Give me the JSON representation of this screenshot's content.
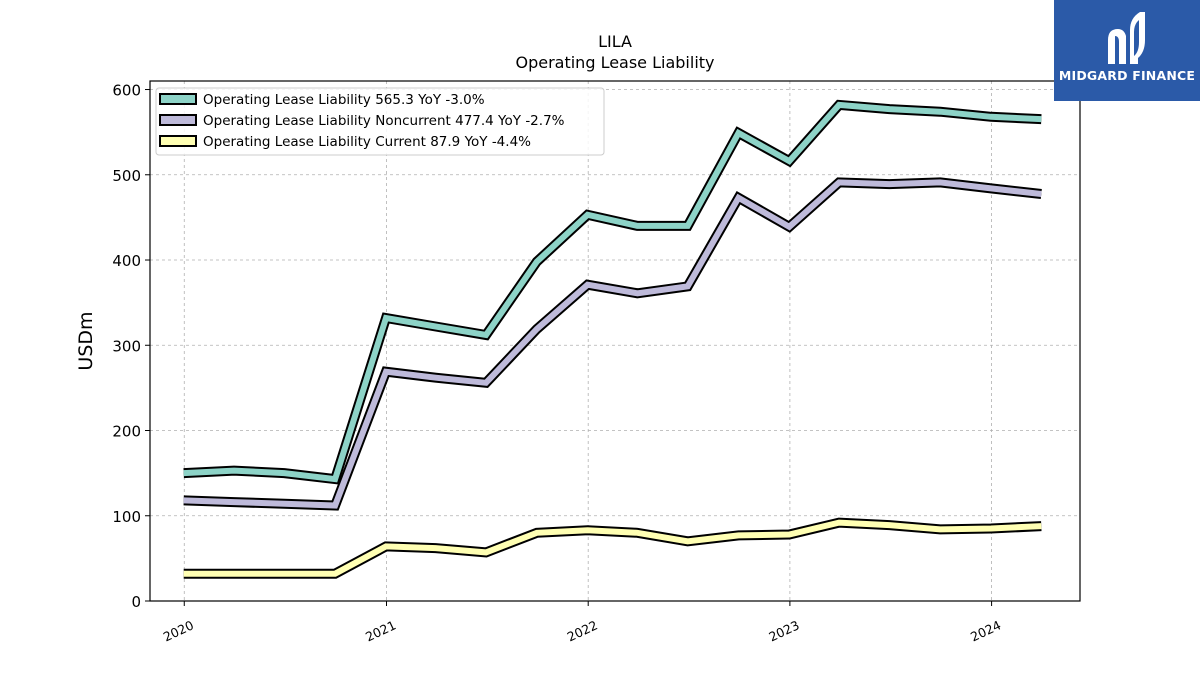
{
  "brand": {
    "name": "MIDGARD FINANCE",
    "icon": "midgard-logo-icon",
    "color": "#2b5aa8"
  },
  "chart_data": {
    "type": "line",
    "title": "LILA",
    "subtitle": "Operating Lease Liability",
    "xlabel": "",
    "ylabel": "USDm",
    "ylim": [
      0,
      610
    ],
    "yticks": [
      0,
      100,
      200,
      300,
      400,
      500,
      600
    ],
    "xtick_labels": [
      "2020",
      "2021",
      "2022",
      "2023",
      "2024"
    ],
    "grid": true,
    "legend_position": "top-left",
    "x": [
      "2019-12-31",
      "2020-03-31",
      "2020-06-30",
      "2020-09-30",
      "2020-12-31",
      "2021-03-31",
      "2021-06-30",
      "2021-09-30",
      "2021-12-31",
      "2022-03-31",
      "2022-06-30",
      "2022-09-30",
      "2022-12-31",
      "2023-03-31",
      "2023-06-30",
      "2023-09-30",
      "2023-12-31",
      "2024-03-31"
    ],
    "series": [
      {
        "name": "Operating Lease Liability",
        "legend": "Operating Lease Liability  565.3 YoY -3.0%",
        "color": "#8dd3c7",
        "values": [
          150,
          153,
          150,
          143,
          332,
          322,
          312,
          398,
          453,
          440,
          440,
          549,
          516,
          582,
          577,
          574,
          568,
          565.3
        ]
      },
      {
        "name": "Operating Lease Liability Noncurrent",
        "legend": "Operating Lease Liability Noncurrent  477.4 YoY -2.7%",
        "color": "#bebada",
        "values": [
          118,
          116,
          114,
          112,
          269,
          262,
          256,
          319,
          371,
          361,
          369,
          473,
          439,
          491,
          489,
          491,
          484,
          477.4
        ]
      },
      {
        "name": "Operating Lease Liability Current",
        "legend": "Operating Lease Liability Current  87.9 YoY -4.4%",
        "color": "#ffffb3",
        "values": [
          32,
          32,
          32,
          32,
          64,
          62,
          57,
          80,
          83,
          80,
          70,
          77,
          78,
          92,
          89,
          84,
          85,
          87.9
        ]
      }
    ]
  }
}
